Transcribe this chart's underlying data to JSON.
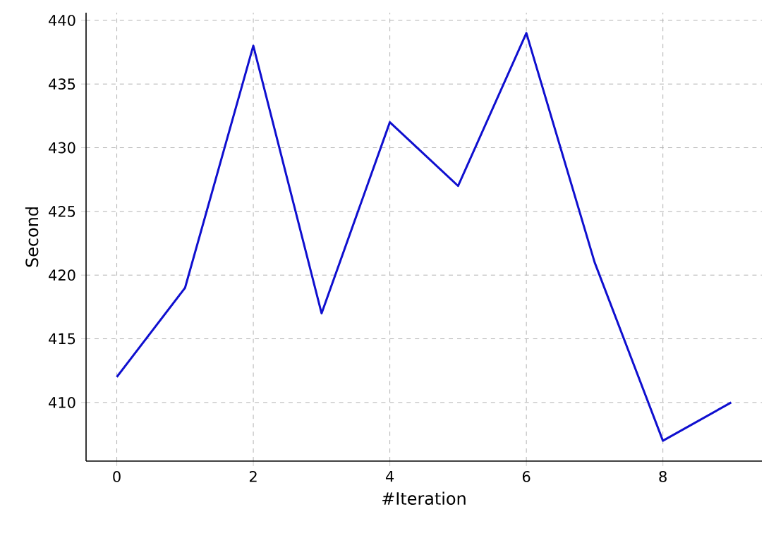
{
  "chart_data": {
    "type": "line",
    "xlabel": "#Iteration",
    "ylabel": "Second",
    "x": [
      0,
      1,
      2,
      3,
      4,
      5,
      6,
      7,
      8,
      9
    ],
    "series": [
      {
        "color": "#0f0fcf",
        "values": [
          412,
          419,
          438,
          417,
          432,
          427,
          439,
          421,
          407,
          410
        ]
      }
    ],
    "xlim": [
      -0.45,
      9.45
    ],
    "ylim": [
      405.4,
      440.6
    ],
    "xticks": [
      0,
      2,
      4,
      6,
      8
    ],
    "yticks": [
      410,
      415,
      420,
      425,
      430,
      435,
      440
    ],
    "grid": true,
    "line_style": "solid"
  }
}
